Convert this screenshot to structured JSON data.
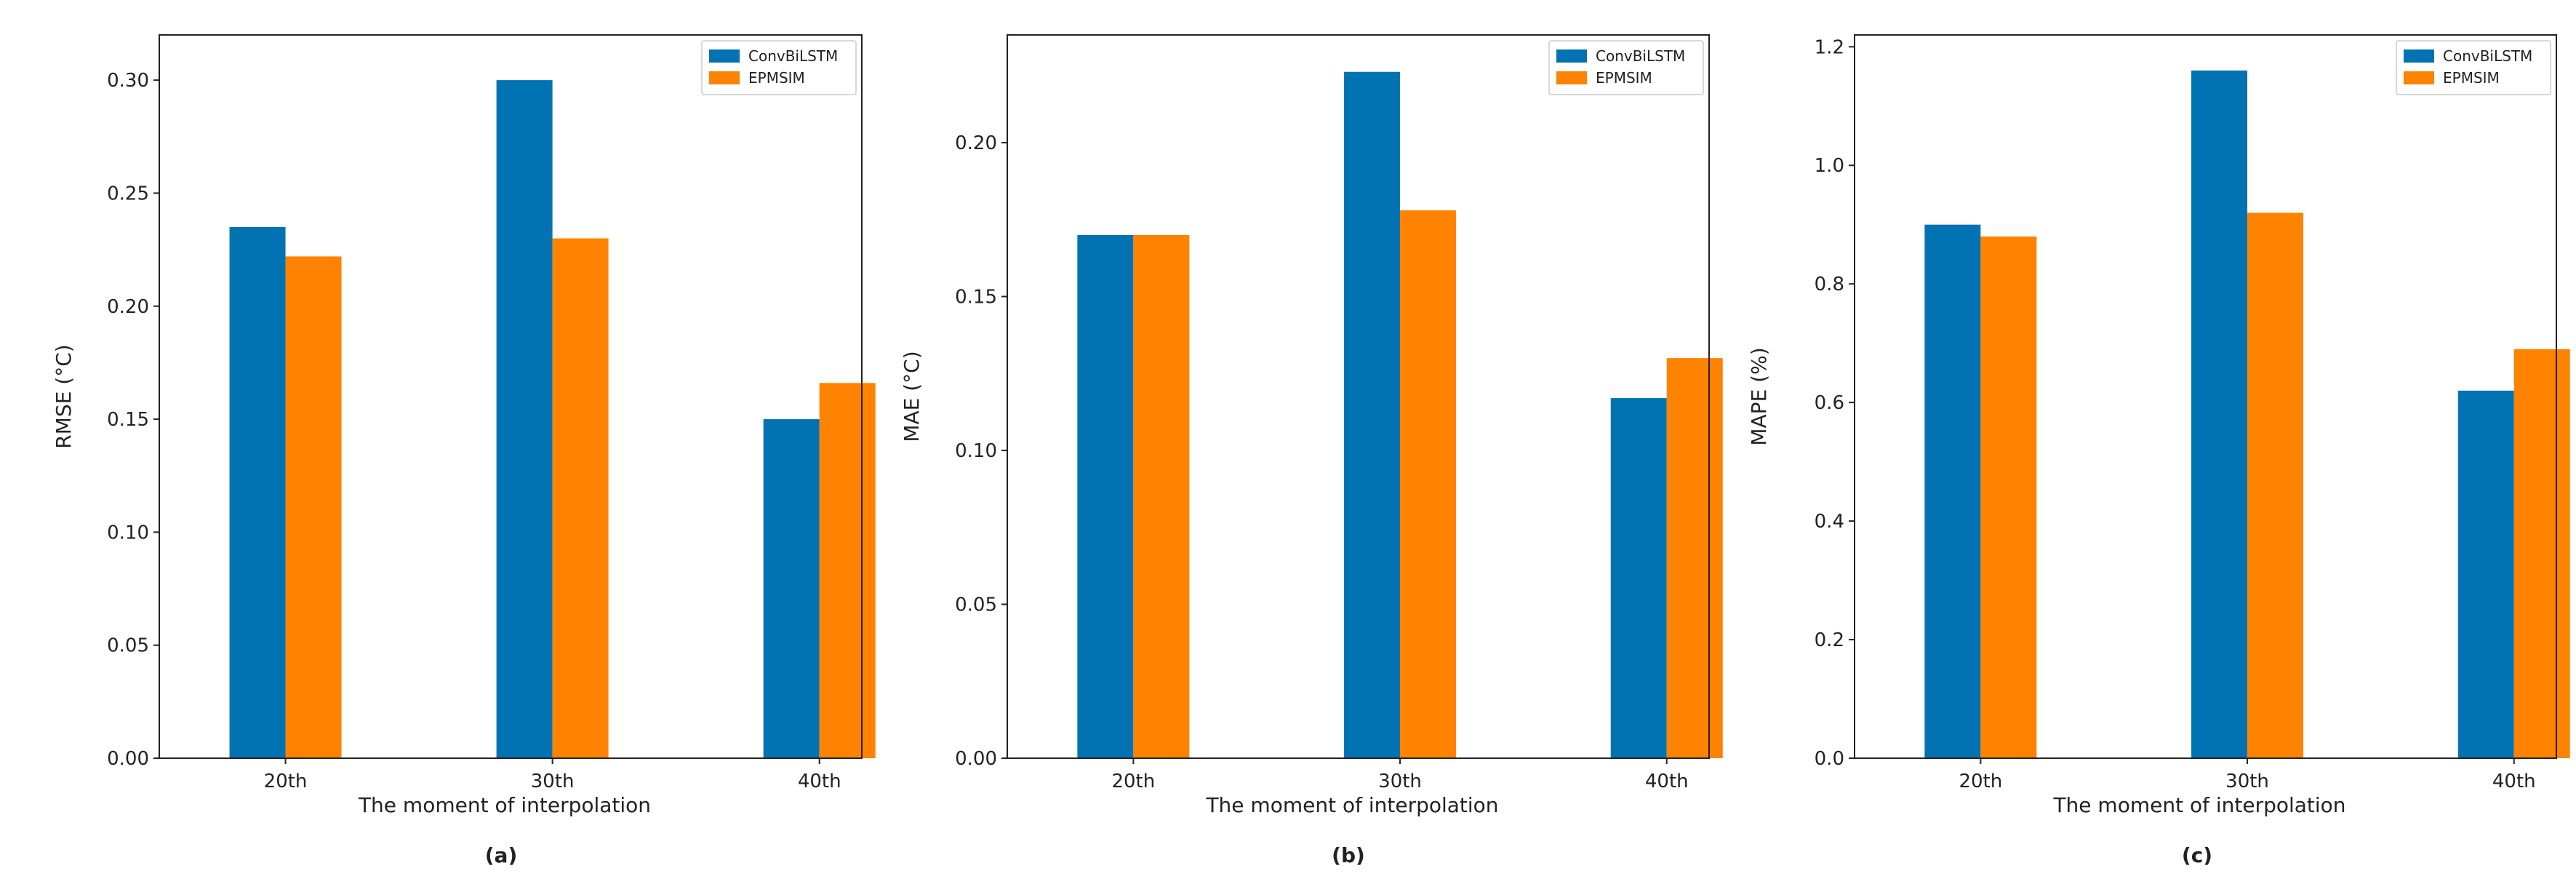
{
  "colors": {
    "ConvBiLSTM": "#0173b2",
    "EPMSIM": "#ff8200"
  },
  "chart_data": [
    {
      "type": "bar",
      "panel_label": "(a)",
      "categories": [
        "20th",
        "30th",
        "40th"
      ],
      "series": [
        {
          "name": "ConvBiLSTM",
          "values": [
            0.235,
            0.3,
            0.15
          ]
        },
        {
          "name": "EPMSIM",
          "values": [
            0.222,
            0.23,
            0.166
          ]
        }
      ],
      "xlabel": "The moment of interpolation",
      "ylabel": "RMSE (°C)",
      "ylim": [
        0,
        0.32
      ],
      "yticks": [
        0.0,
        0.05,
        0.1,
        0.15,
        0.2,
        0.25,
        0.3
      ],
      "ytick_labels": [
        "0.00",
        "0.05",
        "0.10",
        "0.15",
        "0.20",
        "0.25",
        "0.30"
      ],
      "legend": "top-right",
      "grid": false
    },
    {
      "type": "bar",
      "panel_label": "(b)",
      "categories": [
        "20th",
        "30th",
        "40th"
      ],
      "series": [
        {
          "name": "ConvBiLSTM",
          "values": [
            0.17,
            0.223,
            0.117
          ]
        },
        {
          "name": "EPMSIM",
          "values": [
            0.17,
            0.178,
            0.13
          ]
        }
      ],
      "xlabel": "The moment of interpolation",
      "ylabel": "MAE (°C)",
      "ylim": [
        0,
        0.235
      ],
      "yticks": [
        0.0,
        0.05,
        0.1,
        0.15,
        0.2
      ],
      "ytick_labels": [
        "0.00",
        "0.05",
        "0.10",
        "0.15",
        "0.20"
      ],
      "legend": "top-right",
      "grid": false
    },
    {
      "type": "bar",
      "panel_label": "(c)",
      "categories": [
        "20th",
        "30th",
        "40th"
      ],
      "series": [
        {
          "name": "ConvBiLSTM",
          "values": [
            0.9,
            1.16,
            0.62
          ]
        },
        {
          "name": "EPMSIM",
          "values": [
            0.88,
            0.92,
            0.69
          ]
        }
      ],
      "xlabel": "The moment of interpolation",
      "ylabel": "MAPE (%)",
      "ylim": [
        0,
        1.22
      ],
      "yticks": [
        0.0,
        0.2,
        0.4,
        0.6,
        0.8,
        1.0,
        1.2
      ],
      "ytick_labels": [
        "0.0",
        "0.2",
        "0.4",
        "0.6",
        "0.8",
        "1.0",
        "1.2"
      ],
      "legend": "top-right",
      "grid": false
    }
  ]
}
